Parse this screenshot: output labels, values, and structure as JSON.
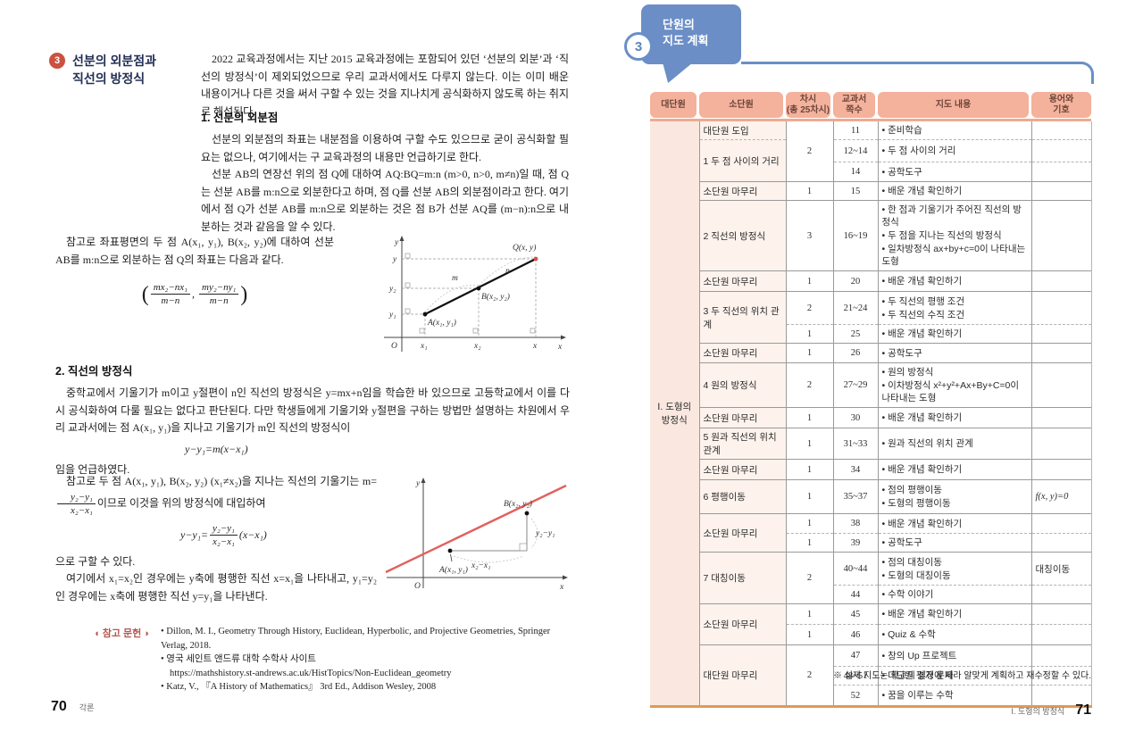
{
  "colors": {
    "accent_blue": "#6b8ec7",
    "accent_red": "#cc5140",
    "table_header_bg": "#f4b19b",
    "unit_col_bg": "#fae8e0",
    "subunit_col_bg": "#fdf2ec",
    "table_bottom_rule": "#e09a54",
    "figure_line_red": "#e2605e"
  },
  "left_page": {
    "badge": "3",
    "title": "선분의 외분점과\n직선의 방정식",
    "intro": "2022 교육과정에서는 지난 2015 교육과정에는 포함되어 있던 ‘선분의 외분’과 ‘직선의 방정식’이 제외되었으므로 우리 교과서에서도 다루지 않는다. 이는 이미 배운 내용이거나 다른 것을 써서 구할 수 있는 것을 지나치게 공식화하지 않도록 하는 취지로 해석된다.",
    "section1": {
      "heading": "1. 선분의 외분점",
      "para1": "선분의 외분점의 좌표는 내분점을 이용하여 구할 수도 있으므로 굳이 공식화할 필요는 없으나, 여기에서는 구 교육과정의 내용만 언급하기로 한다.",
      "para2": "선분 AB의 연장선 위의 점 Q에 대하여 AQ:BQ=m:n (m>0, n>0, m≠n)일 때, 점 Q는 선분 AB를 m:n으로 외분한다고 하며, 점 Q를 선분 AB의 외분점이라고 한다. 여기에서 점 Q가 선분 AB를 m:n으로 외분하는 것은 점 B가 선분 AQ를 (m−n):n으로 내분하는 것과 같음을 알 수 있다.",
      "para3": "참고로 좌표평면의 두 점 A(x₁, y₁), B(x₂, y₂)에 대하여 선분 AB를 m:n으로 외분하는 점 Q의 좌표는 다음과 같다.",
      "formula": {
        "open": "(",
        "f1num": "mx₂−nx₁",
        "f1den": "m−n",
        "comma": ",",
        "f2num": "my₂−ny₁",
        "f2den": "m−n",
        "close": ")"
      }
    },
    "section2": {
      "heading": "2. 직선의 방정식",
      "para1": "중학교에서 기울기가 m이고 y절편이 n인 직선의 방정식은 y=mx+n임을 학습한 바 있으므로 고등학교에서 이를 다시 공식화하여 다룰 필요는 없다고 판단된다. 다만 학생들에게 기울기와 y절편을 구하는 방법만 설명하는 차원에서 우리 교과서에는 점 A(x₁, y₁)을 지나고 기울기가 m인 직선의 방정식이",
      "eq1": "y−y₁=m(x−x₁)",
      "para2": "임을 언급하였다.",
      "para3_pre": "참고로 두 점 A(x₁, y₁), B(x₂, y₂) (x₁≠x₂)을 지나는 직선의 기울기는 m=",
      "frac_num": "y₂−y₁",
      "frac_den": "x₂−x₁",
      "para3_post": "이므로 이것을 위의 방정식에 대입하여",
      "eq2_lhs": "y−y₁=",
      "eq2_num": "y₂−y₁",
      "eq2_den": "x₂−x₁",
      "eq2_rhs": "(x−x₁)",
      "para4": "으로 구할 수 있다.",
      "para5": "여기에서 x₁=x₂인 경우에는 y축에 평행한 직선 x=x₁을 나타내고, y₁=y₂인 경우에는 x축에 평행한 직선 y=y₁을 나타낸다."
    },
    "figure1": {
      "yaxis": "y",
      "xaxis": "x",
      "origin": "O",
      "q": "Q(x, y)",
      "b": "B(x₂, y₂)",
      "a": "A(x₁, y₁)",
      "m": "m",
      "n": "n",
      "ty": "y",
      "ty2": "y₂",
      "ty1": "y₁",
      "tx1": "x₁",
      "tx2": "x₂",
      "tx": "x"
    },
    "figure2": {
      "yaxis": "y",
      "xaxis": "x",
      "origin": "O",
      "b": "B(x₂, y₂)",
      "a": "A(x₁, y₁)",
      "dx": "x₂−x₁",
      "dy": "y₂−y₁"
    },
    "references": {
      "lbl_open": "◖",
      "label": "참고 문헌",
      "lbl_close": "◗",
      "items": [
        {
          "text": "• Dillon, M. I., Geometry Through History, Euclidean, Hyperbolic, and Projective Geometries, Springer Verlag, 2018."
        },
        {
          "text": "• 영국 세인트 앤드류 대학 수학사 사이트",
          "url": "https://mathshistory.st-andrews.ac.uk/HistTopics/Non-Euclidean_geometry"
        },
        {
          "text": "• Katz, V., 『A History of Mathematics』 3rd Ed., Addison Wesley, 2008"
        }
      ]
    },
    "footer": {
      "page": "70",
      "label": "각론"
    }
  },
  "right_page": {
    "badge": "3",
    "title": "단원의\n지도 계획",
    "table": {
      "columns": [
        "대단원",
        "소단원",
        "차시\n(총 25차시)",
        "교과서\n쪽수",
        "지도 내용",
        "용어와\n기호"
      ],
      "unit": "Ⅰ. 도형의\n방정식",
      "rows": [
        {
          "border": "",
          "cells": [
            {
              "type": "subunit",
              "text": "대단원 도입"
            },
            {
              "type": "sessions",
              "text": "2",
              "rowspan": 3
            },
            {
              "type": "pages",
              "text": "11"
            },
            {
              "type": "content",
              "lines": [
                "• 준비학습"
              ]
            },
            {
              "type": "terms",
              "text": ""
            }
          ]
        },
        {
          "border": "dashed",
          "cells": [
            {
              "type": "subunit",
              "text": "1 두 점 사이의 거리",
              "rowspan": 2
            },
            {
              "type": "pages",
              "text": "12~14"
            },
            {
              "type": "content",
              "lines": [
                "• 두 점 사이의 거리"
              ]
            },
            {
              "type": "terms",
              "text": ""
            }
          ]
        },
        {
          "border": "dashed",
          "cells": [
            {
              "type": "pages",
              "text": "14"
            },
            {
              "type": "content",
              "lines": [
                "• 공학도구"
              ]
            },
            {
              "type": "terms",
              "text": ""
            }
          ]
        },
        {
          "border": "solid",
          "cells": [
            {
              "type": "subunit",
              "text": "소단원 마무리"
            },
            {
              "type": "sessions",
              "text": "1"
            },
            {
              "type": "pages",
              "text": "15"
            },
            {
              "type": "content",
              "lines": [
                "• 배운 개념 확인하기"
              ]
            },
            {
              "type": "terms",
              "text": ""
            }
          ]
        },
        {
          "border": "solid",
          "cells": [
            {
              "type": "subunit",
              "text": "2 직선의 방정식"
            },
            {
              "type": "sessions",
              "text": "3"
            },
            {
              "type": "pages",
              "text": "16~19"
            },
            {
              "type": "content",
              "lines": [
                "• 한 점과 기울기가 주어진 직선의 방정식",
                "• 두 점을 지나는 직선의 방정식",
                "• 일차방정식 ax+by+c=0이 나타내는 도형"
              ]
            },
            {
              "type": "terms",
              "text": ""
            }
          ]
        },
        {
          "border": "solid",
          "cells": [
            {
              "type": "subunit",
              "text": "소단원 마무리"
            },
            {
              "type": "sessions",
              "text": "1"
            },
            {
              "type": "pages",
              "text": "20"
            },
            {
              "type": "content",
              "lines": [
                "• 배운 개념 확인하기"
              ]
            },
            {
              "type": "terms",
              "text": ""
            }
          ]
        },
        {
          "border": "solid",
          "cells": [
            {
              "type": "subunit",
              "text": "3 두 직선의 위치 관계",
              "rowspan": 2
            },
            {
              "type": "sessions",
              "text": "2"
            },
            {
              "type": "pages",
              "text": "21~24"
            },
            {
              "type": "content",
              "lines": [
                "• 두 직선의 평행 조건",
                "• 두 직선의 수직 조건"
              ]
            },
            {
              "type": "terms",
              "text": ""
            }
          ]
        },
        {
          "border": "dashed",
          "cells": [
            {
              "type": "sessions",
              "text": "1"
            },
            {
              "type": "pages",
              "text": "25"
            },
            {
              "type": "content",
              "lines": [
                "• 배운 개념 확인하기"
              ]
            },
            {
              "type": "terms",
              "text": ""
            }
          ]
        },
        {
          "border": "solid",
          "cells": [
            {
              "type": "subunit",
              "text": "소단원 마무리"
            },
            {
              "type": "sessions",
              "text": "1"
            },
            {
              "type": "pages",
              "text": "26"
            },
            {
              "type": "content",
              "lines": [
                "• 공학도구"
              ]
            },
            {
              "type": "terms",
              "text": ""
            }
          ]
        },
        {
          "border": "solid",
          "cells": [
            {
              "type": "subunit",
              "text": "4 원의 방정식"
            },
            {
              "type": "sessions",
              "text": "2"
            },
            {
              "type": "pages",
              "text": "27~29"
            },
            {
              "type": "content",
              "lines": [
                "• 원의 방정식",
                "• 이차방정식 x²+y²+Ax+By+C=0이 나타내는 도형"
              ]
            },
            {
              "type": "terms",
              "text": ""
            }
          ]
        },
        {
          "border": "solid",
          "cells": [
            {
              "type": "subunit",
              "text": "소단원 마무리"
            },
            {
              "type": "sessions",
              "text": "1"
            },
            {
              "type": "pages",
              "text": "30"
            },
            {
              "type": "content",
              "lines": [
                "• 배운 개념 확인하기"
              ]
            },
            {
              "type": "terms",
              "text": ""
            }
          ]
        },
        {
          "border": "solid",
          "cells": [
            {
              "type": "subunit",
              "text": "5 원과 직선의 위치 관계"
            },
            {
              "type": "sessions",
              "text": "1"
            },
            {
              "type": "pages",
              "text": "31~33"
            },
            {
              "type": "content",
              "lines": [
                "• 원과 직선의 위치 관계"
              ]
            },
            {
              "type": "terms",
              "text": ""
            }
          ]
        },
        {
          "border": "solid",
          "cells": [
            {
              "type": "subunit",
              "text": "소단원 마무리"
            },
            {
              "type": "sessions",
              "text": "1"
            },
            {
              "type": "pages",
              "text": "34"
            },
            {
              "type": "content",
              "lines": [
                "• 배운 개념 확인하기"
              ]
            },
            {
              "type": "terms",
              "text": ""
            }
          ]
        },
        {
          "border": "solid",
          "cells": [
            {
              "type": "subunit",
              "text": "6 평행이동"
            },
            {
              "type": "sessions",
              "text": "1"
            },
            {
              "type": "pages",
              "text": "35~37"
            },
            {
              "type": "content",
              "lines": [
                "• 점의 평행이동",
                "• 도형의 평행이동"
              ]
            },
            {
              "type": "terms",
              "text": "f(x, y)=0",
              "italic": true
            }
          ]
        },
        {
          "border": "solid",
          "cells": [
            {
              "type": "subunit",
              "text": "소단원 마무리",
              "rowspan": 2
            },
            {
              "type": "sessions",
              "text": "1"
            },
            {
              "type": "pages",
              "text": "38"
            },
            {
              "type": "content",
              "lines": [
                "• 배운 개념 확인하기"
              ]
            },
            {
              "type": "terms",
              "text": ""
            }
          ]
        },
        {
          "border": "dashed",
          "cells": [
            {
              "type": "sessions",
              "text": "1"
            },
            {
              "type": "pages",
              "text": "39"
            },
            {
              "type": "content",
              "lines": [
                "• 공학도구"
              ]
            },
            {
              "type": "terms",
              "text": ""
            }
          ]
        },
        {
          "border": "solid",
          "cells": [
            {
              "type": "subunit",
              "text": "7 대칭이동",
              "rowspan": 2
            },
            {
              "type": "sessions",
              "text": "2",
              "rowspan": 2
            },
            {
              "type": "pages",
              "text": "40~44"
            },
            {
              "type": "content",
              "lines": [
                "• 점의 대칭이동",
                "• 도형의 대칭이동"
              ]
            },
            {
              "type": "terms",
              "text": "대칭이동"
            }
          ]
        },
        {
          "border": "dashed",
          "cells": [
            {
              "type": "pages",
              "text": "44"
            },
            {
              "type": "content",
              "lines": [
                "• 수학 이야기"
              ]
            },
            {
              "type": "terms",
              "text": ""
            }
          ]
        },
        {
          "border": "solid",
          "cells": [
            {
              "type": "subunit",
              "text": "소단원 마무리",
              "rowspan": 2
            },
            {
              "type": "sessions",
              "text": "1"
            },
            {
              "type": "pages",
              "text": "45"
            },
            {
              "type": "content",
              "lines": [
                "• 배운 개념 확인하기"
              ]
            },
            {
              "type": "terms",
              "text": ""
            }
          ]
        },
        {
          "border": "dashed",
          "cells": [
            {
              "type": "sessions",
              "text": "1"
            },
            {
              "type": "pages",
              "text": "46"
            },
            {
              "type": "content",
              "lines": [
                "• Quiz & 수학"
              ]
            },
            {
              "type": "terms",
              "text": ""
            }
          ]
        },
        {
          "border": "solid",
          "cells": [
            {
              "type": "subunit",
              "text": "대단원 마무리",
              "rowspan": 3
            },
            {
              "type": "sessions",
              "text": "2",
              "rowspan": 3
            },
            {
              "type": "pages",
              "text": "47"
            },
            {
              "type": "content",
              "lines": [
                "• 창의 Up 프로젝트"
              ]
            },
            {
              "type": "terms",
              "text": ""
            }
          ]
        },
        {
          "border": "dashed",
          "cells": [
            {
              "type": "pages",
              "text": "48~51"
            },
            {
              "type": "content",
              "lines": [
                "• 대단원 평가 문제"
              ]
            },
            {
              "type": "terms",
              "text": ""
            }
          ]
        },
        {
          "border": "dashed",
          "cells": [
            {
              "type": "pages",
              "text": "52"
            },
            {
              "type": "content",
              "lines": [
                "• 꿈을 이루는 수학"
              ]
            },
            {
              "type": "terms",
              "text": ""
            }
          ]
        }
      ]
    },
    "footnote": "※ 실제 지도는 학교의 실정에 따라 알맞게 계획하고 재수정할 수 있다.",
    "footer": {
      "label": "Ⅰ. 도형의 방정식",
      "page": "71"
    }
  }
}
